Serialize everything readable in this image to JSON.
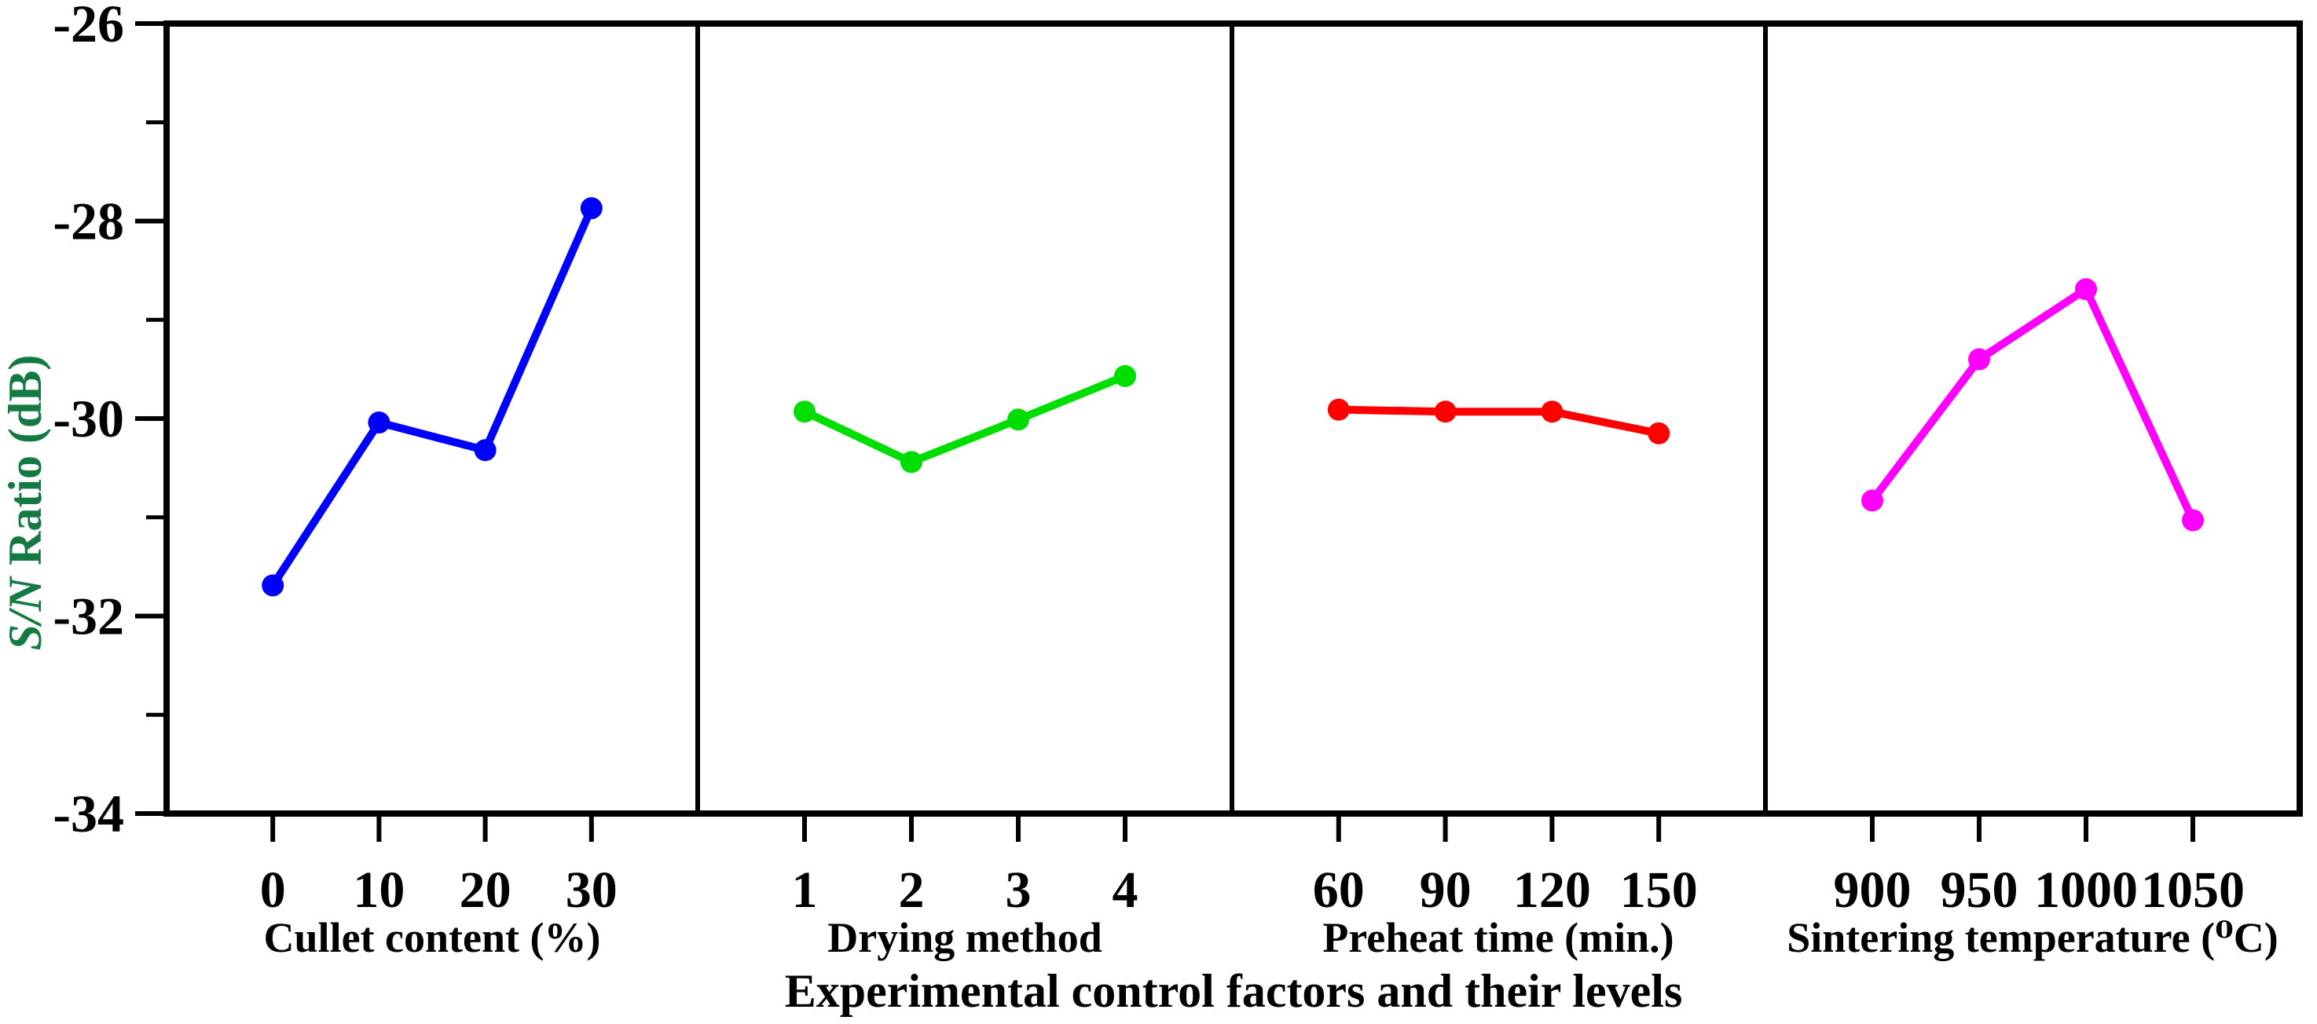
{
  "chart_data": {
    "type": "line",
    "title": "Experimental control factors and their levels",
    "title_color": "#F4731F",
    "y_axis": {
      "label": "S/N Ratio (dB)",
      "label_italic_part": "S/N",
      "label_rest_part": " Ratio (dB)",
      "label_color": "#147942",
      "min": -34,
      "max": -26,
      "major_ticks": [
        -26,
        -28,
        -30,
        -32,
        -34
      ],
      "minor_ticks": [
        -27,
        -29,
        -31,
        -33
      ]
    },
    "ylim": [
      -34,
      -26
    ],
    "grid": false,
    "legend": false,
    "panels": [
      {
        "name": "cullet-content",
        "xlabel": "Cullet content (%)",
        "color": "#0000FF",
        "categories": [
          "0",
          "10",
          "20",
          "30"
        ],
        "values": [
          -31.69,
          -30.04,
          -30.32,
          -27.87
        ]
      },
      {
        "name": "drying-method",
        "xlabel": "Drying method",
        "color": "#00DD00",
        "categories": [
          "1",
          "2",
          "3",
          "4"
        ],
        "values": [
          -29.93,
          -30.44,
          -30.01,
          -29.57
        ]
      },
      {
        "name": "preheat-time",
        "xlabel": "Preheat time (min.)",
        "color": "#FF0000",
        "categories": [
          "60",
          "90",
          "120",
          "150"
        ],
        "values": [
          -29.91,
          -29.93,
          -29.93,
          -30.15
        ]
      },
      {
        "name": "sintering-temperature",
        "xlabel": "Sintering temperature (⁰C)",
        "color": "#FF00FF",
        "categories": [
          "900",
          "950",
          "1000",
          "1050"
        ],
        "values": [
          -30.83,
          -29.4,
          -28.69,
          -31.03
        ]
      }
    ]
  }
}
